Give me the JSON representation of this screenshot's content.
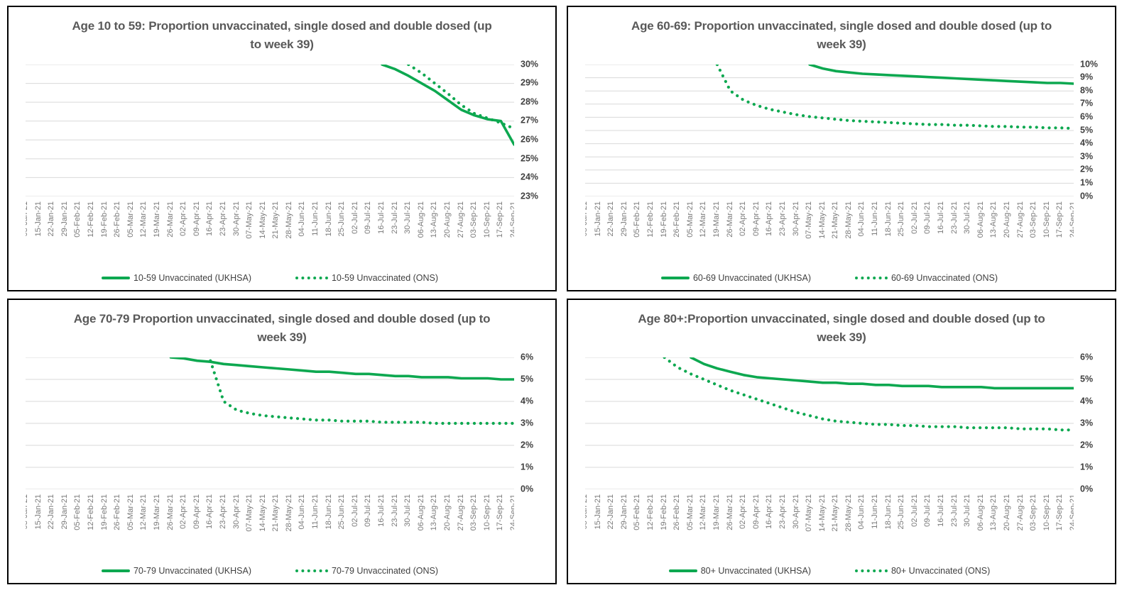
{
  "colors": {
    "series_green": "#0da850",
    "gridline": "#d9d9d9",
    "title_text": "#595959",
    "y_tick_text": "#3f3f3f",
    "x_tick_text": "#7a7a7a",
    "panel_border": "#000000"
  },
  "chart_data": [
    {
      "type": "line",
      "title": "Age 10 to 59: Proportion unvaccinated, single dosed and double dosed (up to week 39)",
      "ylim": [
        23,
        30
      ],
      "yticks": [
        "30%",
        "29%",
        "28%",
        "27%",
        "26%",
        "25%",
        "24%",
        "23%"
      ],
      "grid": true,
      "legend_position": "bottom",
      "y_axis_side": "right",
      "categories": [
        "08-Jan-21",
        "15-Jan-21",
        "22-Jan-21",
        "29-Jan-21",
        "05-Feb-21",
        "12-Feb-21",
        "19-Feb-21",
        "26-Feb-21",
        "05-Mar-21",
        "12-Mar-21",
        "19-Mar-21",
        "26-Mar-21",
        "02-Apr-21",
        "09-Apr-21",
        "16-Apr-21",
        "23-Apr-21",
        "30-Apr-21",
        "07-May-21",
        "14-May-21",
        "21-May-21",
        "28-May-21",
        "04-Jun-21",
        "11-Jun-21",
        "18-Jun-21",
        "25-Jun-21",
        "02-Jul-21",
        "09-Jul-21",
        "16-Jul-21",
        "23-Jul-21",
        "30-Jul-21",
        "06-Aug-21",
        "13-Aug-21",
        "20-Aug-21",
        "27-Aug-21",
        "03-Sep-21",
        "10-Sep-21",
        "17-Sep-21",
        "24-Sep-21"
      ],
      "series": [
        {
          "name": "10-59 Unvaccinated (UKHSA)",
          "legend_label": "10-59 Unvaccinated (UKHSA)",
          "style": "solid",
          "values": [
            null,
            null,
            null,
            null,
            null,
            null,
            null,
            null,
            null,
            null,
            null,
            null,
            null,
            null,
            null,
            null,
            null,
            null,
            null,
            null,
            null,
            null,
            null,
            null,
            null,
            null,
            null,
            30.0,
            29.75,
            29.4,
            29.0,
            28.6,
            28.1,
            27.6,
            27.3,
            27.1,
            27.0,
            25.75
          ]
        },
        {
          "name": "10-59 Unvaccinated (ONS)",
          "legend_label": "10-59 Unvaccinated (ONS)",
          "style": "dotted",
          "values": [
            null,
            null,
            null,
            null,
            null,
            null,
            null,
            null,
            null,
            null,
            null,
            null,
            null,
            null,
            null,
            null,
            null,
            null,
            null,
            null,
            null,
            null,
            null,
            null,
            null,
            null,
            null,
            null,
            null,
            30.0,
            29.55,
            29.0,
            28.45,
            27.85,
            27.4,
            27.15,
            26.9,
            26.6
          ]
        }
      ]
    },
    {
      "type": "line",
      "title": "Age 60-69: Proportion unvaccinated, single dosed and double dosed (up to week 39)",
      "ylim": [
        0,
        10
      ],
      "yticks": [
        "10%",
        "9%",
        "8%",
        "7%",
        "6%",
        "5%",
        "4%",
        "3%",
        "2%",
        "1%",
        "0%"
      ],
      "grid": true,
      "legend_position": "bottom",
      "y_axis_side": "right",
      "categories": [
        "08-Jan-21",
        "15-Jan-21",
        "22-Jan-21",
        "29-Jan-21",
        "05-Feb-21",
        "12-Feb-21",
        "19-Feb-21",
        "26-Feb-21",
        "05-Mar-21",
        "12-Mar-21",
        "19-Mar-21",
        "26-Mar-21",
        "02-Apr-21",
        "09-Apr-21",
        "16-Apr-21",
        "23-Apr-21",
        "30-Apr-21",
        "07-May-21",
        "14-May-21",
        "21-May-21",
        "28-May-21",
        "04-Jun-21",
        "11-Jun-21",
        "18-Jun-21",
        "25-Jun-21",
        "02-Jul-21",
        "09-Jul-21",
        "16-Jul-21",
        "23-Jul-21",
        "30-Jul-21",
        "06-Aug-21",
        "13-Aug-21",
        "20-Aug-21",
        "27-Aug-21",
        "03-Sep-21",
        "10-Sep-21",
        "17-Sep-21",
        "24-Sep-21"
      ],
      "series": [
        {
          "name": "60-69 Unvaccinated (UKHSA)",
          "legend_label": "60-69 Unvaccinated (UKHSA)",
          "style": "solid",
          "values": [
            null,
            null,
            null,
            null,
            null,
            null,
            null,
            null,
            null,
            null,
            null,
            null,
            null,
            null,
            null,
            null,
            null,
            10.0,
            9.7,
            9.5,
            9.4,
            9.3,
            9.25,
            9.2,
            9.15,
            9.1,
            9.05,
            9.0,
            8.95,
            8.9,
            8.85,
            8.8,
            8.75,
            8.7,
            8.65,
            8.6,
            8.6,
            8.55
          ]
        },
        {
          "name": "60-69 Unvaccinated (ONS)",
          "legend_label": "60-69 Unvaccinated (ONS)",
          "style": "dotted",
          "values": [
            null,
            null,
            null,
            null,
            null,
            null,
            null,
            null,
            null,
            null,
            10.0,
            8.0,
            7.3,
            6.9,
            6.6,
            6.4,
            6.2,
            6.05,
            5.95,
            5.85,
            5.75,
            5.7,
            5.65,
            5.6,
            5.55,
            5.5,
            5.45,
            5.45,
            5.4,
            5.4,
            5.35,
            5.3,
            5.3,
            5.25,
            5.25,
            5.2,
            5.2,
            5.15
          ]
        }
      ]
    },
    {
      "type": "line",
      "title": "Age 70-79 Proportion unvaccinated, single dosed and double dosed (up to week 39)",
      "ylim": [
        0,
        6
      ],
      "yticks": [
        "6%",
        "5%",
        "4%",
        "3%",
        "2%",
        "1%",
        "0%"
      ],
      "grid": true,
      "legend_position": "bottom",
      "y_axis_side": "right",
      "categories": [
        "08-Jan-21",
        "15-Jan-21",
        "22-Jan-21",
        "29-Jan-21",
        "05-Feb-21",
        "12-Feb-21",
        "19-Feb-21",
        "26-Feb-21",
        "05-Mar-21",
        "12-Mar-21",
        "19-Mar-21",
        "26-Mar-21",
        "02-Apr-21",
        "09-Apr-21",
        "16-Apr-21",
        "23-Apr-21",
        "30-Apr-21",
        "07-May-21",
        "14-May-21",
        "21-May-21",
        "28-May-21",
        "04-Jun-21",
        "11-Jun-21",
        "18-Jun-21",
        "25-Jun-21",
        "02-Jul-21",
        "09-Jul-21",
        "16-Jul-21",
        "23-Jul-21",
        "30-Jul-21",
        "06-Aug-21",
        "13-Aug-21",
        "20-Aug-21",
        "27-Aug-21",
        "03-Sep-21",
        "10-Sep-21",
        "17-Sep-21",
        "24-Sep-21"
      ],
      "series": [
        {
          "name": "70-79 Unvaccinated (UKHSA)",
          "legend_label": "70-79 Unvaccinated (UKHSA)",
          "style": "solid",
          "values": [
            null,
            null,
            null,
            null,
            null,
            null,
            null,
            null,
            null,
            null,
            null,
            6.0,
            5.95,
            5.85,
            5.8,
            5.7,
            5.65,
            5.6,
            5.55,
            5.5,
            5.45,
            5.4,
            5.35,
            5.35,
            5.3,
            5.25,
            5.25,
            5.2,
            5.15,
            5.15,
            5.1,
            5.1,
            5.1,
            5.05,
            5.05,
            5.05,
            5.0,
            5.0
          ]
        },
        {
          "name": "70-79 Unvaccinated (ONS)",
          "legend_label": "70-79 Unvaccinated (ONS)",
          "style": "dotted",
          "values": [
            null,
            null,
            null,
            null,
            null,
            null,
            null,
            null,
            null,
            null,
            null,
            null,
            null,
            null,
            5.85,
            4.0,
            3.6,
            3.45,
            3.35,
            3.3,
            3.25,
            3.2,
            3.15,
            3.15,
            3.1,
            3.1,
            3.1,
            3.05,
            3.05,
            3.05,
            3.05,
            3.0,
            3.0,
            3.0,
            3.0,
            3.0,
            3.0,
            3.0
          ]
        }
      ]
    },
    {
      "type": "line",
      "title": "Age 80+:Proportion unvaccinated, single dosed and double dosed (up to week 39)",
      "ylim": [
        0,
        6
      ],
      "yticks": [
        "6%",
        "5%",
        "4%",
        "3%",
        "2%",
        "1%",
        "0%"
      ],
      "grid": true,
      "legend_position": "bottom",
      "y_axis_side": "right",
      "categories": [
        "08-Jan-21",
        "15-Jan-21",
        "22-Jan-21",
        "29-Jan-21",
        "05-Feb-21",
        "12-Feb-21",
        "19-Feb-21",
        "26-Feb-21",
        "05-Mar-21",
        "12-Mar-21",
        "19-Mar-21",
        "26-Mar-21",
        "02-Apr-21",
        "09-Apr-21",
        "16-Apr-21",
        "23-Apr-21",
        "30-Apr-21",
        "07-May-21",
        "14-May-21",
        "21-May-21",
        "28-May-21",
        "04-Jun-21",
        "11-Jun-21",
        "18-Jun-21",
        "25-Jun-21",
        "02-Jul-21",
        "09-Jul-21",
        "16-Jul-21",
        "23-Jul-21",
        "30-Jul-21",
        "06-Aug-21",
        "13-Aug-21",
        "20-Aug-21",
        "27-Aug-21",
        "03-Sep-21",
        "10-Sep-21",
        "17-Sep-21",
        "24-Sep-21"
      ],
      "series": [
        {
          "name": "80+ Unvaccinated (UKHSA)",
          "legend_label": "80+ Unvaccinated (UKHSA)",
          "style": "solid",
          "values": [
            null,
            null,
            null,
            null,
            null,
            null,
            null,
            null,
            6.0,
            5.7,
            5.5,
            5.35,
            5.2,
            5.1,
            5.05,
            5.0,
            4.95,
            4.9,
            4.85,
            4.85,
            4.8,
            4.8,
            4.75,
            4.75,
            4.7,
            4.7,
            4.7,
            4.65,
            4.65,
            4.65,
            4.65,
            4.6,
            4.6,
            4.6,
            4.6,
            4.6,
            4.6,
            4.6
          ]
        },
        {
          "name": "80+ Unvaccinated (ONS)",
          "legend_label": "80+ Unvaccinated (ONS)",
          "style": "dotted",
          "values": [
            null,
            null,
            null,
            null,
            null,
            null,
            6.0,
            5.55,
            5.25,
            5.0,
            4.75,
            4.5,
            4.3,
            4.1,
            3.9,
            3.7,
            3.5,
            3.35,
            3.2,
            3.1,
            3.05,
            3.0,
            2.95,
            2.95,
            2.9,
            2.9,
            2.85,
            2.85,
            2.85,
            2.8,
            2.8,
            2.8,
            2.8,
            2.75,
            2.75,
            2.75,
            2.7,
            2.7
          ]
        }
      ]
    }
  ]
}
